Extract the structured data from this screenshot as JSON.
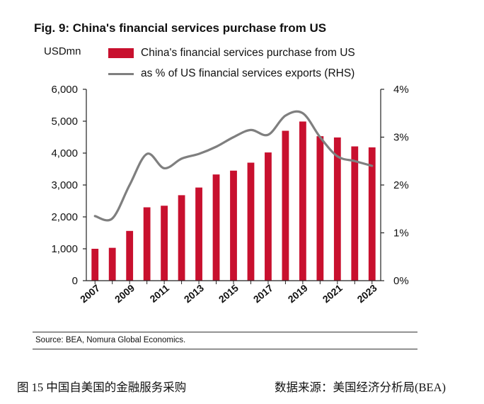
{
  "figure": {
    "title": "Fig. 9: China's financial services purchase from US",
    "source": "Source: BEA, Nomura Global Economics."
  },
  "caption": {
    "left": "图 15 中国自美国的金融服务采购",
    "right": "数据来源：美国经济分析局(BEA)"
  },
  "colors": {
    "bar": "#c8102e",
    "line": "#7f7f7f",
    "axis": "#222222"
  },
  "chart_data": {
    "type": "bar",
    "title": "Fig. 9: China's financial services purchase from US",
    "ylabel_left": "USDmn",
    "ylabel_right": "",
    "x": [
      2007,
      2008,
      2009,
      2010,
      2011,
      2012,
      2013,
      2014,
      2015,
      2016,
      2017,
      2018,
      2019,
      2020,
      2021,
      2022,
      2023
    ],
    "x_tick_labels": [
      "2007",
      "2009",
      "2011",
      "2013",
      "2015",
      "2017",
      "2019",
      "2021",
      "2023"
    ],
    "ylim_left": [
      0,
      6000
    ],
    "y_ticks_left": [
      "0",
      "1,000",
      "2,000",
      "3,000",
      "4,000",
      "5,000",
      "6,000"
    ],
    "ylim_right": [
      0,
      4
    ],
    "y_ticks_right": [
      "0%",
      "1%",
      "2%",
      "3%",
      "4%"
    ],
    "legend_position": "top",
    "grid": false,
    "series": [
      {
        "name": "China's financial services purchase from US",
        "type": "bar",
        "axis": "left",
        "values": [
          1000,
          1030,
          1560,
          2300,
          2350,
          2680,
          2920,
          3330,
          3450,
          3700,
          4020,
          4700,
          4990,
          4530,
          4490,
          4210,
          4180
        ]
      },
      {
        "name": "as % of US financial services exports (RHS)",
        "type": "line",
        "axis": "right",
        "values": [
          1.35,
          1.3,
          2.0,
          2.65,
          2.35,
          2.55,
          2.65,
          2.8,
          3.0,
          3.15,
          3.05,
          3.45,
          3.5,
          3.0,
          2.6,
          2.5,
          2.4
        ]
      }
    ]
  }
}
